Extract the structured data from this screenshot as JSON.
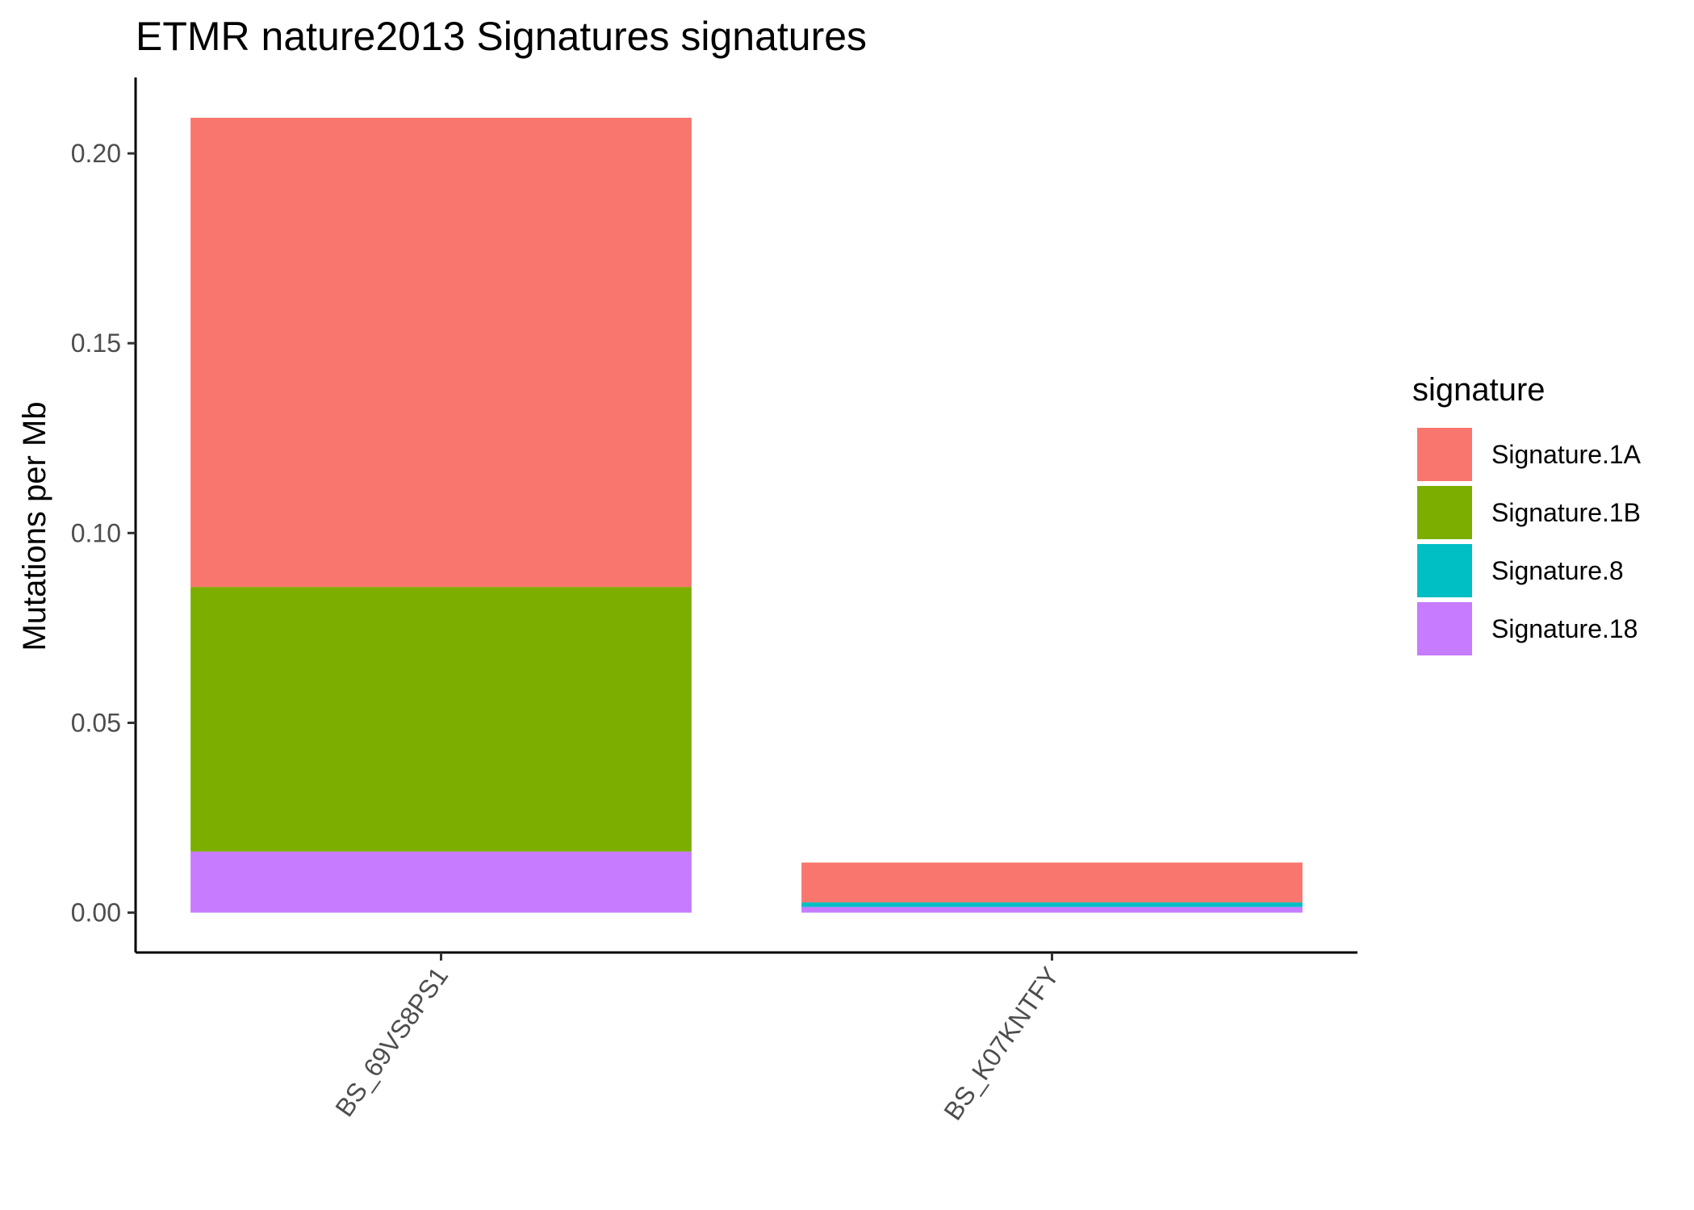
{
  "chart_data": {
    "type": "bar",
    "stacked": true,
    "title": "ETMR nature2013 Signatures signatures",
    "xlabel": "",
    "ylabel": "Mutations per Mb",
    "ylim": [
      -0.0105,
      0.22
    ],
    "yticks": [
      0.0,
      0.05,
      0.1,
      0.15,
      0.2
    ],
    "ytick_labels": [
      "0.00",
      "0.05",
      "0.10",
      "0.15",
      "0.20"
    ],
    "categories": [
      "BS_69VS8PS1",
      "BS_K07KNTFY"
    ],
    "grid": false,
    "legend": {
      "title": "signature",
      "position": "right"
    },
    "series": [
      {
        "name": "Signature.1A",
        "color": "#F8766D",
        "values": [
          0.1236,
          0.0105
        ]
      },
      {
        "name": "Signature.1B",
        "color": "#7CAE00",
        "values": [
          0.0697,
          0.0
        ]
      },
      {
        "name": "Signature.8",
        "color": "#00BFC4",
        "values": [
          0.0,
          0.0012
        ]
      },
      {
        "name": "Signature.18",
        "color": "#C77CFF",
        "values": [
          0.0161,
          0.0015
        ]
      }
    ]
  }
}
